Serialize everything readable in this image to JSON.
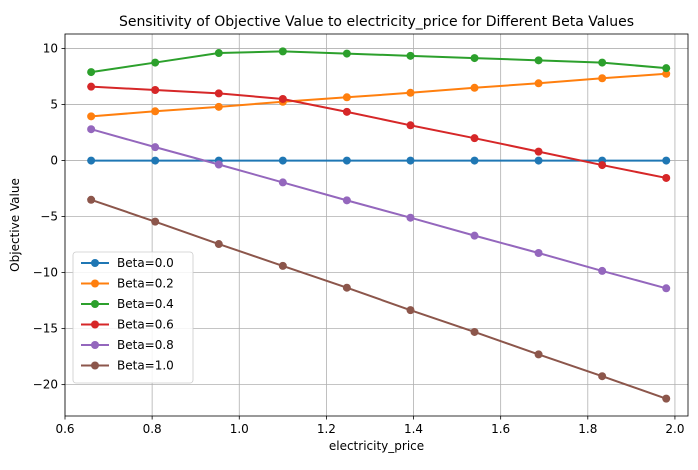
{
  "chart_data": {
    "type": "line",
    "title": "Sensitivity of Objective Value to electricity_price for Different Beta Values",
    "xlabel": "electricity_price",
    "ylabel": "Objective Value",
    "xlim": [
      0.6,
      2.03
    ],
    "ylim": [
      -22.8,
      11.3
    ],
    "xticks": [
      0.6,
      0.8,
      1.0,
      1.2,
      1.4,
      1.6,
      1.8,
      2.0
    ],
    "xtick_labels": [
      "0.6",
      "0.8",
      "1.0",
      "1.2",
      "1.4",
      "1.6",
      "1.8",
      "2.0"
    ],
    "yticks": [
      -20,
      -15,
      -10,
      -5,
      0,
      5,
      10
    ],
    "ytick_labels": [
      "−20",
      "−15",
      "−10",
      "−5",
      "0",
      "5",
      "10"
    ],
    "grid": true,
    "legend_position": "lower-left",
    "x": [
      0.66,
      0.807,
      0.953,
      1.1,
      1.247,
      1.393,
      1.54,
      1.687,
      1.833,
      1.98
    ],
    "series": [
      {
        "name": "Beta=0.0",
        "color": "#1f77b4",
        "values": [
          0,
          0,
          0,
          0,
          0,
          0,
          0,
          0,
          0,
          0
        ]
      },
      {
        "name": "Beta=0.2",
        "color": "#ff7f0e",
        "values": [
          3.95,
          4.4,
          4.8,
          5.25,
          5.65,
          6.05,
          6.5,
          6.9,
          7.35,
          7.75
        ]
      },
      {
        "name": "Beta=0.4",
        "color": "#2ca02c",
        "values": [
          7.9,
          8.75,
          9.6,
          9.75,
          9.55,
          9.35,
          9.15,
          8.95,
          8.75,
          8.25
        ]
      },
      {
        "name": "Beta=0.6",
        "color": "#d62728",
        "values": [
          6.6,
          6.3,
          6.0,
          5.5,
          4.35,
          3.15,
          2.0,
          0.8,
          -0.4,
          -1.55
        ]
      },
      {
        "name": "Beta=0.8",
        "color": "#9467bd",
        "values": [
          2.8,
          1.2,
          -0.35,
          -1.95,
          -3.55,
          -5.1,
          -6.7,
          -8.25,
          -9.85,
          -11.4
        ]
      },
      {
        "name": "Beta=1.0",
        "color": "#8c564b",
        "values": [
          -3.5,
          -5.45,
          -7.45,
          -9.4,
          -11.35,
          -13.35,
          -15.3,
          -17.3,
          -19.25,
          -21.25
        ]
      }
    ]
  }
}
